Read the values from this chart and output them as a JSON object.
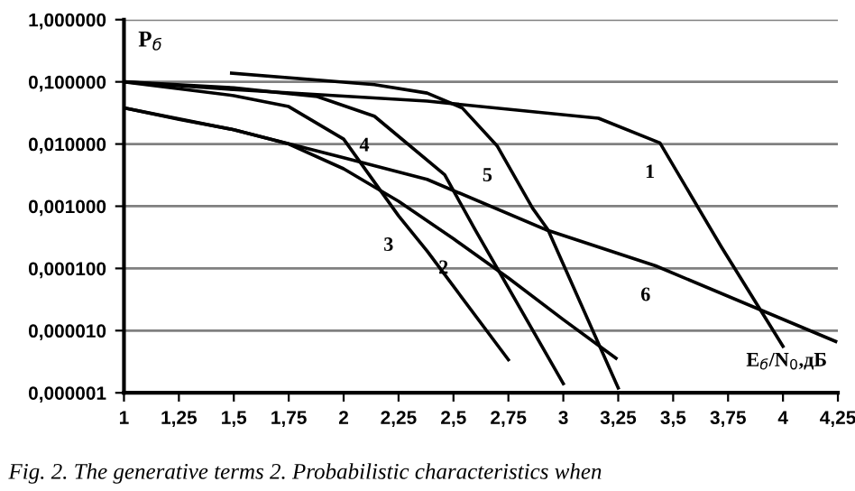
{
  "chart_data": {
    "type": "line",
    "xlabel": "E$_{б}$/N$_{0}$,дБ",
    "ylabel": "P$_{б}$",
    "series": [
      {
        "color": "#000000",
        "x": [
          1,
          1.5,
          2.38,
          3.16,
          3.44,
          3.72,
          4.0
        ],
        "values": [
          0.1,
          0.075,
          0.049,
          0.026,
          0.0104,
          0.00022,
          5.6e-06
        ]
      },
      {
        "color": "#000000",
        "x": [
          1,
          1.25,
          1.5,
          1.75,
          2.0,
          2.25,
          2.5,
          2.75,
          3.0,
          3.24
        ],
        "values": [
          0.038,
          0.025,
          0.017,
          0.01,
          0.004,
          0.0012,
          0.0003,
          7e-05,
          1.5e-05,
          3.6e-06
        ]
      },
      {
        "color": "#000000",
        "x": [
          1,
          1.5,
          1.75,
          2.0,
          2.25,
          2.38,
          2.75
        ],
        "values": [
          0.1,
          0.06,
          0.04,
          0.012,
          0.0007,
          0.00019,
          3.4e-06
        ]
      },
      {
        "color": "#000000",
        "x": [
          1,
          1.5,
          1.88,
          2.14,
          2.46,
          2.6,
          3.0
        ],
        "values": [
          0.1,
          0.08,
          0.058,
          0.028,
          0.0032,
          0.00041,
          1.4e-06
        ]
      },
      {
        "color": "#000000",
        "x": [
          1.49,
          2.14,
          2.38,
          2.54,
          2.7,
          2.86,
          2.93,
          3.25
        ],
        "values": [
          0.138,
          0.09,
          0.066,
          0.038,
          0.0092,
          0.00093,
          0.00042,
          1.2e-06
        ]
      },
      {
        "color": "#000000",
        "x": [
          1,
          1.5,
          2.0,
          2.38,
          2.92,
          3.42,
          4.24
        ],
        "values": [
          0.038,
          0.017,
          0.006,
          0.0027,
          0.00042,
          0.00011,
          6.7e-06
        ]
      }
    ],
    "log": "y",
    "xlim": [
      1,
      4.25
    ],
    "ylim": [
      1e-06,
      1
    ],
    "xticks": [
      1,
      {
        "value": 1.25,
        "label": "1,25"
      },
      {
        "value": 1.5,
        "label": "1,5"
      },
      {
        "value": 1.75,
        "label": "1,75"
      },
      2,
      {
        "value": 2.25,
        "label": "2,25"
      },
      {
        "value": 2.5,
        "label": "2,5"
      },
      {
        "value": 2.75,
        "label": "2,75"
      },
      3,
      {
        "value": 3.25,
        "label": "3,25"
      },
      {
        "value": 3.5,
        "label": "3,5"
      },
      {
        "value": 3.75,
        "label": "3,75"
      },
      4,
      {
        "value": 4.25,
        "label": "4,25"
      }
    ],
    "yticks": [
      {
        "value": 1e-06,
        "label": "0,000001"
      },
      {
        "value": 1e-05,
        "label": "0,000010"
      },
      {
        "value": 0.0001,
        "label": "0,000100"
      },
      {
        "value": 0.001,
        "label": "0,001000"
      },
      {
        "value": 0.01,
        "label": "0,010000"
      },
      {
        "value": 0.1,
        "label": "0,100000"
      },
      {
        "value": 1,
        "label": "1,000000"
      }
    ],
    "grid": "y",
    "marker": "none",
    "line_style": "solid",
    "annotations": [
      {
        "text": "1",
        "x": 3.44,
        "y": 0.0104
      },
      {
        "text": "2",
        "x": 2.5,
        "y": 0.0003
      },
      {
        "text": "3",
        "x": 2.25,
        "y": 0.0007
      },
      {
        "text": "4",
        "x": 2.14,
        "y": 0.028
      },
      {
        "text": "5",
        "x": 2.7,
        "y": 0.0092
      },
      {
        "text": "6",
        "x": 3.42,
        "y": 0.00011
      },
      "Fig. 2. The generative terms 2. Probabilistic characteristics when"
    ]
  }
}
